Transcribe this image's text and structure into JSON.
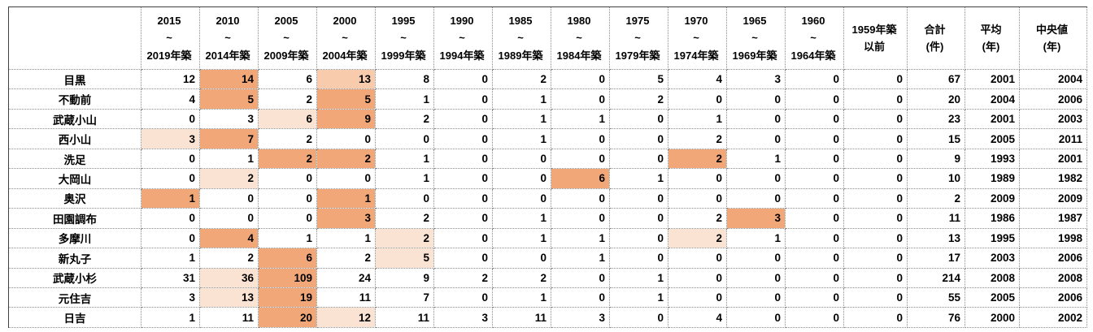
{
  "colors": {
    "highlight_dark": "#F2A778",
    "highlight_medium": "#F8CBAD",
    "highlight_pale": "#FBE3D3"
  },
  "table": {
    "corner_label": "",
    "columns": [
      {
        "lines": [
          "2015",
          "~",
          "2019年築"
        ]
      },
      {
        "lines": [
          "2010",
          "~",
          "2014年築"
        ]
      },
      {
        "lines": [
          "2005",
          "~",
          "2009年築"
        ]
      },
      {
        "lines": [
          "2000",
          "~",
          "2004年築"
        ]
      },
      {
        "lines": [
          "1995",
          "~",
          "1999年築"
        ]
      },
      {
        "lines": [
          "1990",
          "~",
          "1994年築"
        ]
      },
      {
        "lines": [
          "1985",
          "~",
          "1989年築"
        ]
      },
      {
        "lines": [
          "1980",
          "~",
          "1984年築"
        ]
      },
      {
        "lines": [
          "1975",
          "~",
          "1979年築"
        ]
      },
      {
        "lines": [
          "1970",
          "~",
          "1974年築"
        ]
      },
      {
        "lines": [
          "1965",
          "~",
          "1969年築"
        ]
      },
      {
        "lines": [
          "1960",
          "~",
          "1964年築"
        ]
      },
      {
        "lines": [
          "1959年築",
          "以前"
        ]
      },
      {
        "lines": [
          "合計",
          "(件)"
        ]
      },
      {
        "lines": [
          "平均",
          "(年)"
        ]
      },
      {
        "lines": [
          "中央値",
          "(年)"
        ]
      }
    ],
    "rows": [
      {
        "station": "目黒",
        "counts": [
          12,
          14,
          6,
          13,
          8,
          0,
          2,
          0,
          5,
          4,
          3,
          0,
          0
        ],
        "total": 67,
        "average": 2001,
        "median": 2004,
        "highlights": {
          "1": "dark",
          "3": "medium"
        }
      },
      {
        "station": "不動前",
        "counts": [
          4,
          5,
          2,
          5,
          1,
          0,
          1,
          0,
          2,
          0,
          0,
          0,
          0
        ],
        "total": 20,
        "average": 2004,
        "median": 2006,
        "highlights": {
          "1": "dark",
          "3": "dark"
        }
      },
      {
        "station": "武蔵小山",
        "counts": [
          0,
          3,
          6,
          9,
          2,
          0,
          1,
          1,
          0,
          1,
          0,
          0,
          0
        ],
        "total": 23,
        "average": 2001,
        "median": 2003,
        "highlights": {
          "2": "pale",
          "3": "dark"
        }
      },
      {
        "station": "西小山",
        "counts": [
          3,
          7,
          2,
          0,
          0,
          0,
          1,
          0,
          0,
          2,
          0,
          0,
          0
        ],
        "total": 15,
        "average": 2005,
        "median": 2011,
        "highlights": {
          "0": "pale",
          "1": "dark"
        }
      },
      {
        "station": "洗足",
        "counts": [
          0,
          1,
          2,
          2,
          1,
          0,
          0,
          0,
          0,
          2,
          1,
          0,
          0
        ],
        "total": 9,
        "average": 1993,
        "median": 2001,
        "highlights": {
          "2": "dark",
          "3": "dark",
          "9": "dark"
        }
      },
      {
        "station": "大岡山",
        "counts": [
          0,
          2,
          0,
          0,
          1,
          0,
          0,
          6,
          1,
          0,
          0,
          0,
          0
        ],
        "total": 10,
        "average": 1989,
        "median": 1982,
        "highlights": {
          "1": "pale",
          "7": "dark"
        }
      },
      {
        "station": "奥沢",
        "counts": [
          1,
          0,
          0,
          1,
          0,
          0,
          0,
          0,
          0,
          0,
          0,
          0,
          0
        ],
        "total": 2,
        "average": 2009,
        "median": 2009,
        "highlights": {
          "0": "dark",
          "3": "dark"
        }
      },
      {
        "station": "田園調布",
        "counts": [
          0,
          0,
          0,
          3,
          2,
          0,
          1,
          0,
          0,
          2,
          3,
          0,
          0
        ],
        "total": 11,
        "average": 1986,
        "median": 1987,
        "highlights": {
          "3": "dark",
          "10": "dark"
        }
      },
      {
        "station": "多摩川",
        "counts": [
          0,
          4,
          1,
          1,
          2,
          0,
          1,
          1,
          0,
          2,
          1,
          0,
          0
        ],
        "total": 13,
        "average": 1995,
        "median": 1998,
        "highlights": {
          "1": "dark",
          "4": "pale",
          "9": "pale"
        }
      },
      {
        "station": "新丸子",
        "counts": [
          1,
          2,
          6,
          2,
          5,
          0,
          0,
          1,
          0,
          0,
          0,
          0,
          0
        ],
        "total": 17,
        "average": 2003,
        "median": 2006,
        "highlights": {
          "2": "dark",
          "4": "pale"
        }
      },
      {
        "station": "武蔵小杉",
        "counts": [
          31,
          36,
          109,
          24,
          9,
          2,
          2,
          0,
          1,
          0,
          0,
          0,
          0
        ],
        "total": 214,
        "average": 2008,
        "median": 2008,
        "highlights": {
          "1": "pale",
          "2": "dark"
        }
      },
      {
        "station": "元住吉",
        "counts": [
          3,
          13,
          19,
          11,
          7,
          0,
          1,
          0,
          1,
          0,
          0,
          0,
          0
        ],
        "total": 55,
        "average": 2005,
        "median": 2006,
        "highlights": {
          "1": "pale",
          "2": "dark"
        }
      },
      {
        "station": "日吉",
        "counts": [
          1,
          11,
          20,
          12,
          11,
          3,
          11,
          3,
          0,
          4,
          0,
          0,
          0
        ],
        "total": 76,
        "average": 2000,
        "median": 2002,
        "highlights": {
          "2": "dark",
          "3": "pale"
        }
      }
    ]
  }
}
